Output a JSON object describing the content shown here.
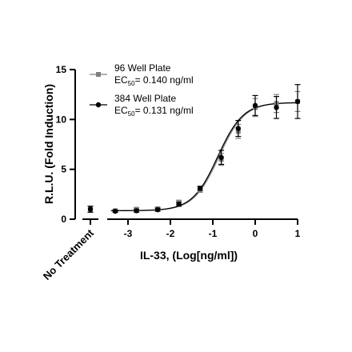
{
  "chart_data": {
    "type": "scatter",
    "xlabel": "IL-33, (Log[ng/ml])",
    "ylabel": "R.L.U. (Fold Induction)",
    "xlim": [
      -3.4,
      1.0
    ],
    "ylim": [
      0,
      15
    ],
    "x_ticks": [
      "-3",
      "-2",
      "-1",
      "0",
      "1"
    ],
    "y_ticks": [
      "0",
      "5",
      "10",
      "15"
    ],
    "control_label": "No Treatment",
    "legend_position": "top-left",
    "series": [
      {
        "name": "96 Well Plate",
        "ec50_label": "EC50= 0.140 ng/ml",
        "color": "#808080",
        "marker": "square",
        "control": {
          "y": 1.0,
          "err": 0.3
        },
        "x": [
          -3.3,
          -2.8,
          -2.3,
          -1.8,
          -1.3,
          -0.8,
          -0.4,
          0.0,
          0.5,
          1.0
        ],
        "y": [
          0.85,
          1.0,
          1.05,
          1.7,
          2.9,
          6.0,
          8.8,
          11.2,
          11.6,
          11.8
        ],
        "err": [
          0.1,
          0.15,
          0.15,
          0.2,
          0.2,
          0.6,
          0.7,
          0.9,
          0.9,
          1.0
        ]
      },
      {
        "name": "384 Well Plate",
        "ec50_label": "EC50= 0.131 ng/ml",
        "color": "#000000",
        "marker": "circle",
        "control": {
          "y": 1.0,
          "err": 0.3
        },
        "x": [
          -3.3,
          -2.8,
          -2.3,
          -1.8,
          -1.3,
          -0.8,
          -0.4,
          0.0,
          0.5,
          1.0
        ],
        "y": [
          0.8,
          0.85,
          0.95,
          1.5,
          3.1,
          6.2,
          9.1,
          11.4,
          11.2,
          11.8
        ],
        "err": [
          0.1,
          0.15,
          0.15,
          0.2,
          0.2,
          0.7,
          0.8,
          1.0,
          1.1,
          1.7
        ]
      }
    ],
    "fit": {
      "bottom": 0.85,
      "top": 11.7,
      "logEC50": [
        -0.854,
        -0.883
      ],
      "hill": 1.45
    }
  }
}
